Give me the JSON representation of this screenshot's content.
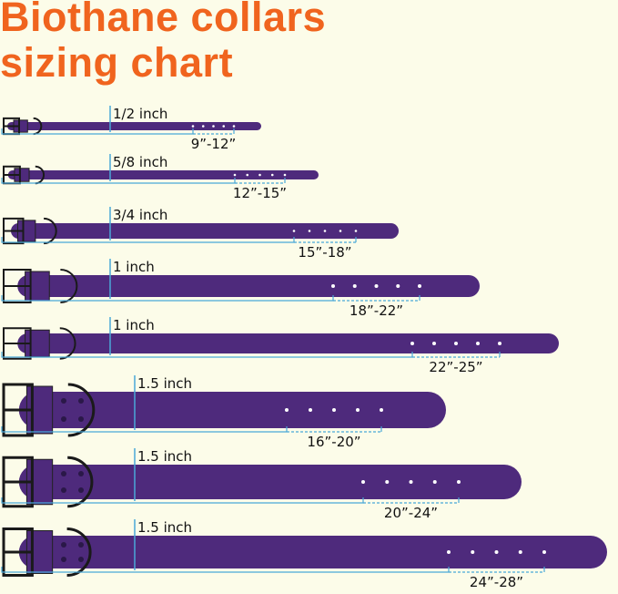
{
  "title": {
    "line1": "Biothane collars",
    "line2": "sizing chart"
  },
  "colors": {
    "title": "#f0641e",
    "strap": "#4e2a7c",
    "measure_line": "#4aa8d8",
    "buckle": "#1a1a1a",
    "background": "#fcfce9"
  },
  "collars": [
    {
      "width": "1/2 inch",
      "size": "9”-12”"
    },
    {
      "width": "5/8 inch",
      "size": "12”-15”"
    },
    {
      "width": "3/4 inch",
      "size": "15”-18”"
    },
    {
      "width": "1 inch",
      "size": "18”-22”"
    },
    {
      "width": "1 inch",
      "size": "22”-25”"
    },
    {
      "width": "1.5 inch",
      "size": "16”-20”"
    },
    {
      "width": "1.5 inch",
      "size": "20”-24”"
    },
    {
      "width": "1.5 inch",
      "size": "24”-28”"
    }
  ]
}
